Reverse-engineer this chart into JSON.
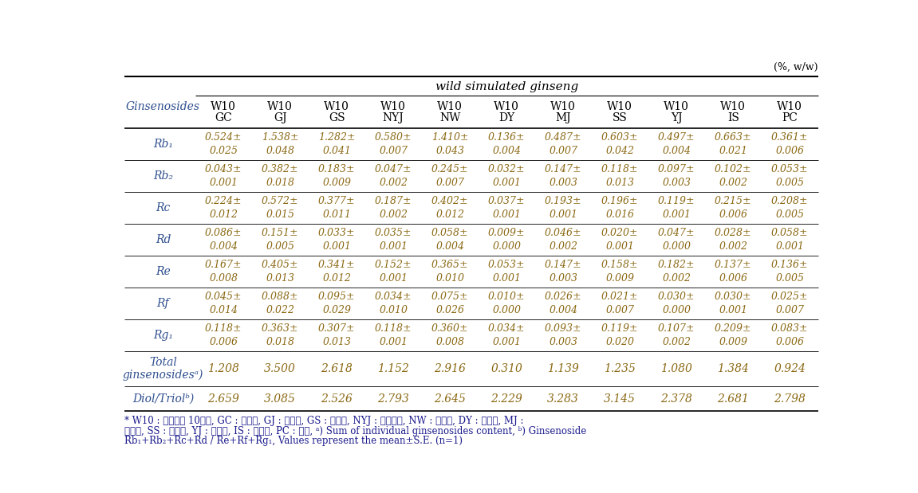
{
  "title_unit": "(%, w/w)",
  "header_group": "wild simulated ginseng",
  "col_headers_line1": [
    "W10",
    "W10",
    "W10",
    "W10",
    "W10",
    "W10",
    "W10",
    "W10",
    "W10",
    "W10",
    "W10"
  ],
  "col_headers_line2": [
    "GC",
    "GJ",
    "GS",
    "NYJ",
    "NW",
    "DY",
    "MJ",
    "SS",
    "YJ",
    "IS",
    "PC"
  ],
  "row_labels": [
    "Rb₁",
    "Rb₂",
    "Rc",
    "Rd",
    "Re",
    "Rf",
    "Rg₁",
    "Total\nginsenosidesᵃ)",
    "Diol/Triolᵇ)"
  ],
  "data_values": [
    [
      "0.524±",
      "1.538±",
      "1.282±",
      "0.580±",
      "1.410±",
      "0.136±",
      "0.487±",
      "0.603±",
      "0.497±",
      "0.663±",
      "0.361±"
    ],
    [
      "0.043±",
      "0.382±",
      "0.183±",
      "0.047±",
      "0.245±",
      "0.032±",
      "0.147±",
      "0.118±",
      "0.097±",
      "0.102±",
      "0.053±"
    ],
    [
      "0.224±",
      "0.572±",
      "0.377±",
      "0.187±",
      "0.402±",
      "0.037±",
      "0.193±",
      "0.196±",
      "0.119±",
      "0.215±",
      "0.208±"
    ],
    [
      "0.086±",
      "0.151±",
      "0.033±",
      "0.035±",
      "0.058±",
      "0.009±",
      "0.046±",
      "0.020±",
      "0.047±",
      "0.028±",
      "0.058±"
    ],
    [
      "0.167±",
      "0.405±",
      "0.341±",
      "0.152±",
      "0.365±",
      "0.053±",
      "0.147±",
      "0.158±",
      "0.182±",
      "0.137±",
      "0.136±"
    ],
    [
      "0.045±",
      "0.088±",
      "0.095±",
      "0.034±",
      "0.075±",
      "0.010±",
      "0.026±",
      "0.021±",
      "0.030±",
      "0.030±",
      "0.025±"
    ],
    [
      "0.118±",
      "0.363±",
      "0.307±",
      "0.118±",
      "0.360±",
      "0.034±",
      "0.093±",
      "0.119±",
      "0.107±",
      "0.209±",
      "0.083±"
    ],
    [
      "1.208",
      "3.500",
      "2.618",
      "1.152",
      "2.916",
      "0.310",
      "1.139",
      "1.235",
      "1.080",
      "1.384",
      "0.924"
    ],
    [
      "2.659",
      "3.085",
      "2.526",
      "2.793",
      "2.645",
      "2.229",
      "3.283",
      "3.145",
      "2.378",
      "2.681",
      "2.798"
    ]
  ],
  "data_errors": [
    [
      "0.025",
      "0.048",
      "0.041",
      "0.007",
      "0.043",
      "0.004",
      "0.007",
      "0.042",
      "0.004",
      "0.021",
      "0.006"
    ],
    [
      "0.001",
      "0.018",
      "0.009",
      "0.002",
      "0.007",
      "0.001",
      "0.003",
      "0.013",
      "0.003",
      "0.002",
      "0.005"
    ],
    [
      "0.012",
      "0.015",
      "0.011",
      "0.002",
      "0.012",
      "0.001",
      "0.001",
      "0.016",
      "0.001",
      "0.006",
      "0.005"
    ],
    [
      "0.004",
      "0.005",
      "0.001",
      "0.001",
      "0.004",
      "0.000",
      "0.002",
      "0.001",
      "0.000",
      "0.002",
      "0.001"
    ],
    [
      "0.008",
      "0.013",
      "0.012",
      "0.001",
      "0.010",
      "0.001",
      "0.003",
      "0.009",
      "0.002",
      "0.006",
      "0.005"
    ],
    [
      "0.014",
      "0.022",
      "0.029",
      "0.010",
      "0.026",
      "0.000",
      "0.004",
      "0.007",
      "0.000",
      "0.001",
      "0.007"
    ],
    [
      "0.006",
      "0.018",
      "0.013",
      "0.001",
      "0.008",
      "0.001",
      "0.003",
      "0.020",
      "0.002",
      "0.009",
      "0.006"
    ],
    [
      null,
      null,
      null,
      null,
      null,
      null,
      null,
      null,
      null,
      null,
      null
    ],
    [
      null,
      null,
      null,
      null,
      null,
      null,
      null,
      null,
      null,
      null,
      null
    ]
  ],
  "footnote_line1": "* W10 : 겨웸체집 10년근, GC : 거산산, GJ : 공주산, GS : 금산산, NYJ : 남양주산, NW : 남원산, DY : 단양산, MJ :",
  "footnote_line2": "무주산, SS : 서산산, YJ : 영주산, IS : 임실산, PC : 평산, ᵃ) Sum of individual ginsenosides content, ᵇ) Ginsenoside",
  "footnote_line3": "Rb₁+Rb₂+Rc+Rd / Re+Rf+Rg₁, Values represent the mean±S.E. (n=1)",
  "text_color_data": "#8B6914",
  "text_color_header": "#2F4F8F",
  "text_color_black": "#000000",
  "text_color_footnote": "#1a1a8c"
}
